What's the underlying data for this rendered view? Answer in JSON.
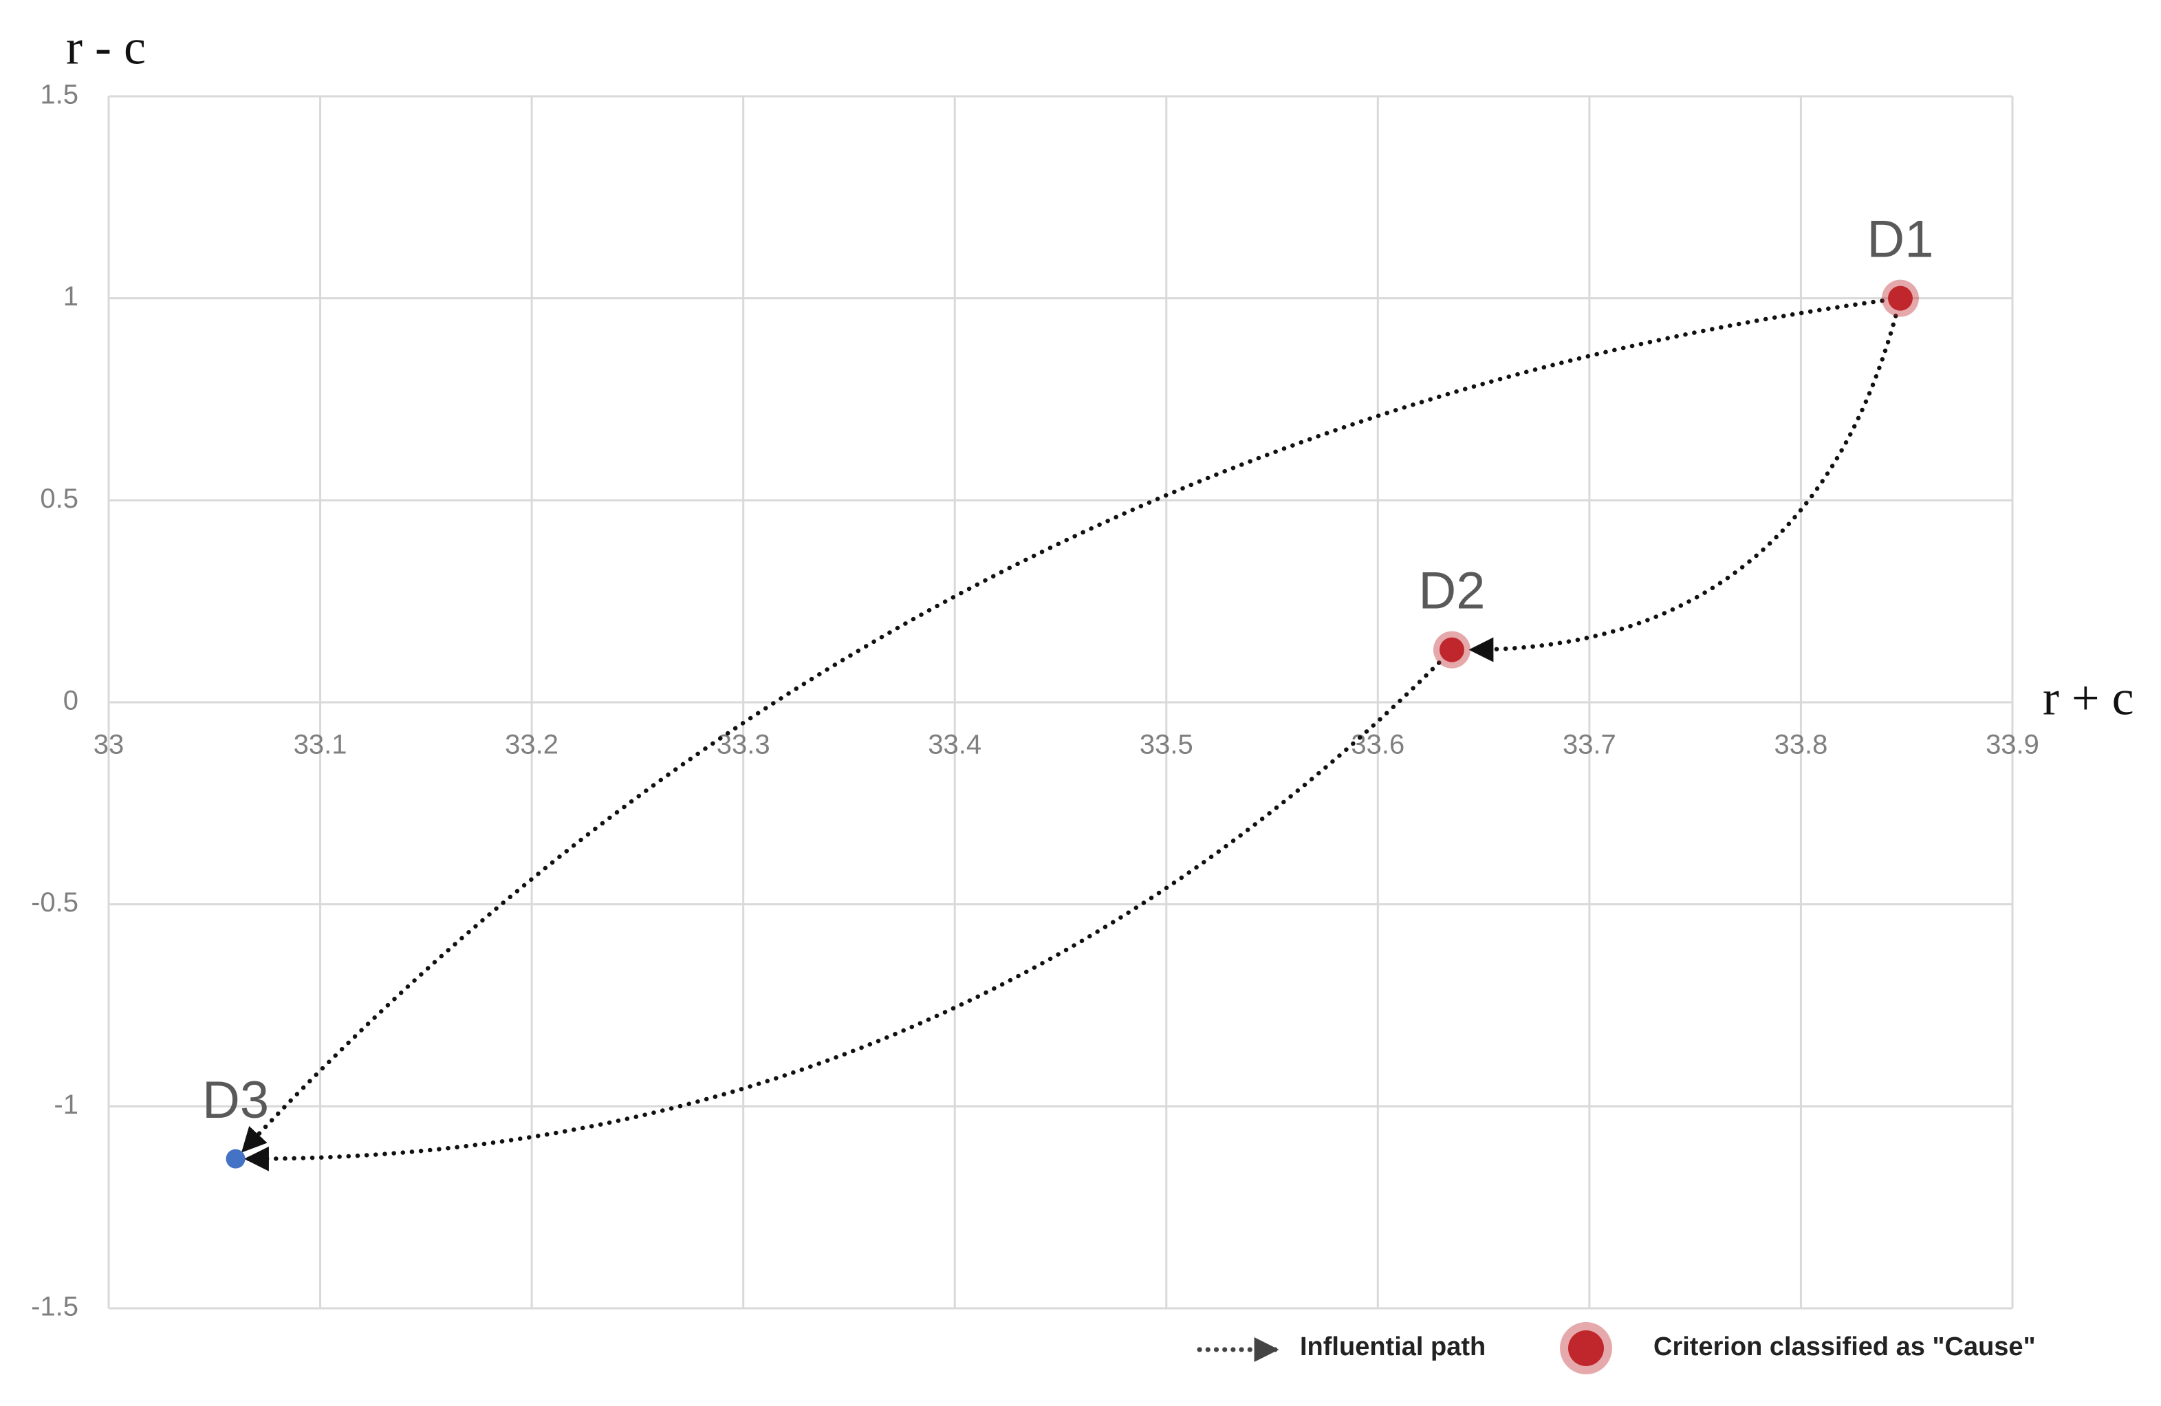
{
  "chart_data": {
    "type": "scatter",
    "x_label": "r + c",
    "y_label": "r - c",
    "xlim": [
      33,
      33.9
    ],
    "xticks": [
      33,
      33.1,
      33.2,
      33.3,
      33.4,
      33.5,
      33.6,
      33.7,
      33.8,
      33.9
    ],
    "ylim": [
      -1.5,
      1.5
    ],
    "yticks": [
      -1.5,
      -1,
      -0.5,
      0,
      0.5,
      1,
      1.5
    ],
    "grid": true,
    "path_label": "Influential path",
    "series": [
      {
        "name": "Criterion classified as \"Cause\"",
        "color": "#c0272d",
        "labels": [
          "D1",
          "D2"
        ],
        "x": [
          33.847,
          33.635
        ],
        "values": [
          1,
          0.13
        ]
      },
      {
        "color": "#4472c4",
        "labels": [
          "D3"
        ],
        "x": [
          33.06
        ],
        "values": [
          -1.13
        ]
      }
    ]
  }
}
